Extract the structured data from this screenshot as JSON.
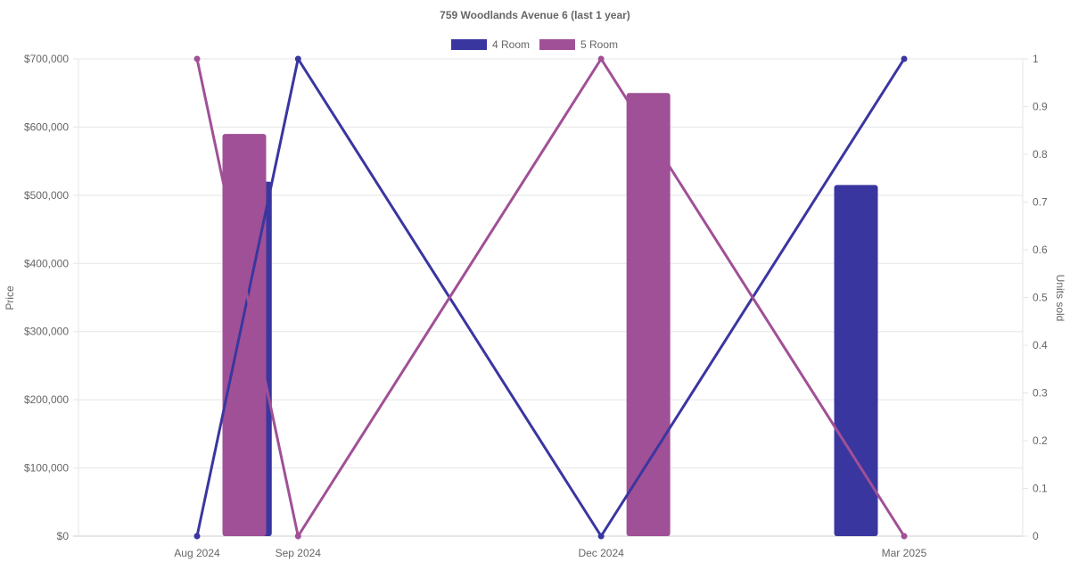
{
  "chart_data": {
    "type": "bar",
    "title": "759 Woodlands Avenue 6 (last 1 year)",
    "categories": [
      "Aug 2024",
      "Sep 2024",
      "Dec 2024",
      "Mar 2025"
    ],
    "ylabel": "Price",
    "y2label": "Units sold",
    "ylim": [
      0,
      700000
    ],
    "y2lim": [
      0,
      1
    ],
    "yticks": [
      "$0",
      "$100,000",
      "$200,000",
      "$300,000",
      "$400,000",
      "$500,000",
      "$600,000",
      "$700,000"
    ],
    "y2ticks": [
      "0",
      "0.1",
      "0.2",
      "0.3",
      "0.4",
      "0.5",
      "0.6",
      "0.7",
      "0.8",
      "0.9",
      "1"
    ],
    "grid": true,
    "legend": "top-center",
    "series": [
      {
        "name": "4 Room",
        "color": "#3a36a0",
        "price": [
          null,
          520000,
          null,
          515000
        ],
        "units_sold": [
          0,
          1,
          0,
          1
        ]
      },
      {
        "name": "5 Room",
        "color": "#a05096",
        "price": [
          590000,
          null,
          650000,
          null
        ],
        "units_sold": [
          1,
          0,
          1,
          0
        ]
      }
    ]
  }
}
